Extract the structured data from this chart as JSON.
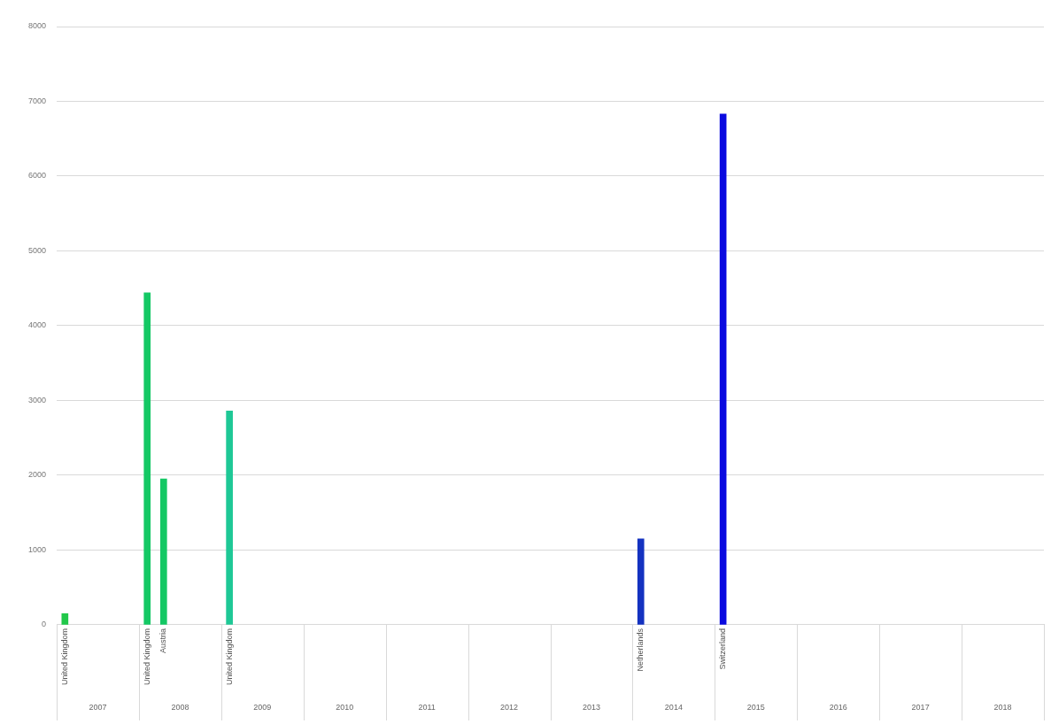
{
  "chart_data": {
    "type": "bar",
    "categories": [
      "United Kingdom",
      null,
      null,
      null,
      null,
      "United Kingdom",
      "Austria",
      null,
      null,
      null,
      "United Kingdom",
      null,
      null,
      null,
      null,
      null,
      null,
      null,
      null,
      null,
      null,
      null,
      null,
      null,
      null,
      null,
      null,
      null,
      null,
      null,
      null,
      null,
      null,
      null,
      null,
      "Netherlands",
      null,
      null,
      null,
      null,
      "Switzerland",
      null,
      null,
      null,
      null,
      null,
      null,
      null,
      null,
      null,
      null,
      null,
      null,
      null,
      null,
      null,
      null,
      null,
      null,
      null
    ],
    "values": [
      150,
      null,
      null,
      null,
      null,
      4440,
      1950,
      null,
      null,
      null,
      2860,
      null,
      null,
      null,
      null,
      null,
      null,
      null,
      null,
      null,
      null,
      null,
      null,
      null,
      null,
      null,
      null,
      null,
      null,
      null,
      null,
      null,
      null,
      null,
      null,
      1150,
      null,
      null,
      null,
      null,
      6830,
      null,
      null,
      null,
      null,
      null,
      null,
      null,
      null,
      null,
      null,
      null,
      null,
      null,
      null,
      null,
      null,
      null,
      null,
      null
    ],
    "colors": [
      "#22c84a",
      null,
      null,
      null,
      null,
      "#14c864",
      "#14c864",
      null,
      null,
      null,
      "#1ec896",
      null,
      null,
      null,
      null,
      null,
      null,
      null,
      null,
      null,
      null,
      null,
      null,
      null,
      null,
      null,
      null,
      null,
      null,
      null,
      null,
      null,
      null,
      null,
      null,
      "#1432c0",
      null,
      null,
      null,
      null,
      "#0a0ae0",
      null,
      null,
      null,
      null,
      null,
      null,
      null,
      null,
      null,
      null,
      null,
      null,
      null,
      null,
      null,
      null,
      null,
      null,
      null
    ],
    "annotations": [
      "2007",
      "2008",
      "2009",
      "2010",
      "2011",
      "2012",
      "2013",
      "2014",
      "2015",
      "2016",
      "2017",
      "2018"
    ],
    "ylim": [
      0,
      8000
    ],
    "yticks": [
      0,
      1000,
      2000,
      3000,
      4000,
      5000,
      6000,
      7000,
      8000
    ],
    "grid": "y",
    "legend": false
  }
}
